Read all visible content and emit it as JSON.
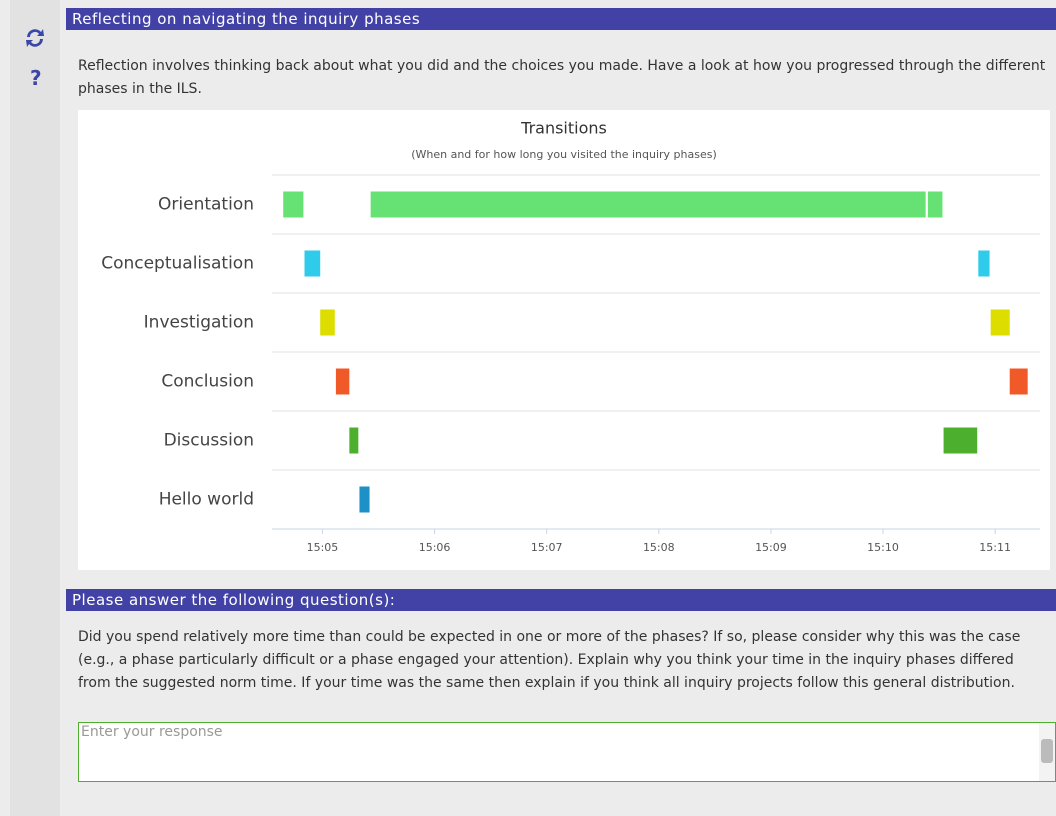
{
  "sidebar": {
    "help": "?"
  },
  "header": {
    "title": "Reflecting on navigating the inquiry phases"
  },
  "intro": "Reflection involves thinking back about what you did and the choices you made. Have a look at how you progressed through the different phases in the ILS.",
  "chart_data": {
    "type": "timeline",
    "title": "Transitions",
    "subtitle": "(When and for how long you visited the inquiry phases)",
    "xlim": [
      904.55,
      911.4
    ],
    "xticks": [
      {
        "value": 905,
        "label": "15:05"
      },
      {
        "value": 906,
        "label": "15:06"
      },
      {
        "value": 907,
        "label": "15:07"
      },
      {
        "value": 908,
        "label": "15:08"
      },
      {
        "value": 909,
        "label": "15:09"
      },
      {
        "value": 910,
        "label": "15:10"
      },
      {
        "value": 911,
        "label": "15:11"
      }
    ],
    "grid": true,
    "series": [
      {
        "name": "Orientation",
        "color": "#66e275",
        "intervals": [
          [
            904.65,
            904.83
          ],
          [
            905.43,
            910.38
          ],
          [
            910.4,
            910.53
          ]
        ]
      },
      {
        "name": "Conceptualisation",
        "color": "#2ecbeb",
        "intervals": [
          [
            904.84,
            904.98
          ],
          [
            910.85,
            910.95
          ]
        ]
      },
      {
        "name": "Investigation",
        "color": "#dddd00",
        "intervals": [
          [
            904.98,
            905.11
          ],
          [
            910.96,
            911.13
          ]
        ]
      },
      {
        "name": "Conclusion",
        "color": "#f05a28",
        "intervals": [
          [
            905.12,
            905.24
          ],
          [
            911.13,
            911.29
          ]
        ]
      },
      {
        "name": "Discussion",
        "color": "#4caf2e",
        "intervals": [
          [
            905.24,
            905.32
          ],
          [
            910.54,
            910.84
          ]
        ]
      },
      {
        "name": "Hello world",
        "color": "#1e90c8",
        "intervals": [
          [
            905.33,
            905.42
          ]
        ]
      }
    ]
  },
  "question": {
    "title": "Please answer the following question(s):",
    "text": "Did you spend relatively more time than could be expected in one or more of the phases? If so, please consider why this was the case (e.g., a phase particularly difficult or a phase engaged your attention). Explain why you think your time in the inquiry phases differed from the suggested norm time. If your time was the same then explain if you think all inquiry projects follow this general distribution.",
    "placeholder": "Enter your response"
  }
}
